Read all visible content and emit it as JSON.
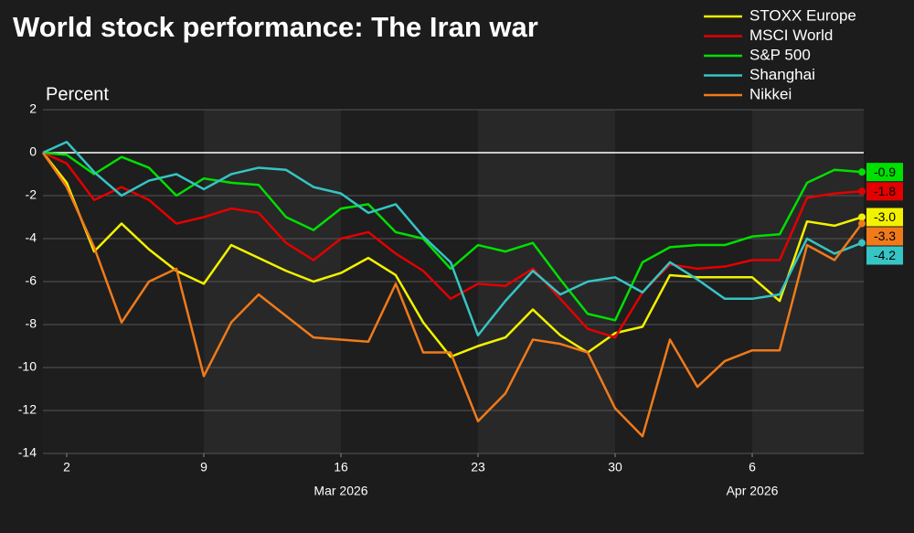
{
  "chart_data": {
    "type": "line",
    "title": "World stock performance: The Iran war",
    "y_label": "Percent",
    "categories": [
      null,
      "2",
      null,
      null,
      null,
      null,
      "9",
      null,
      null,
      null,
      null,
      "16",
      null,
      null,
      null,
      null,
      "23",
      null,
      null,
      null,
      null,
      "30",
      null,
      null,
      null,
      null,
      "6",
      null,
      null,
      null,
      null
    ],
    "month_labels": [
      {
        "label": "Mar 2026",
        "category": 11
      },
      {
        "label": "Apr 2026",
        "category": 26
      }
    ],
    "ylim": [
      -14,
      2
    ],
    "yticks": [
      -14,
      -12,
      -10,
      -8,
      -6,
      -4,
      -2,
      0,
      2
    ],
    "grid": true,
    "legend": "top-right",
    "series": [
      {
        "name": "STOXX Europe",
        "color": "#f2f200",
        "end_label": "-3.0",
        "values": [
          0,
          -1.4,
          -4.6,
          -3.3,
          -4.5,
          -5.5,
          -6.1,
          -4.3,
          -4.9,
          -5.5,
          -6.0,
          -5.6,
          -4.9,
          -5.7,
          -7.9,
          -9.5,
          -9.0,
          -8.6,
          -7.3,
          -8.5,
          -9.3,
          -8.4,
          -8.1,
          -5.7,
          -5.8,
          -5.8,
          -5.8,
          -6.9,
          -3.2,
          -3.4,
          -3.0
        ]
      },
      {
        "name": "MSCI World",
        "color": "#e30000",
        "end_label": "-1.8",
        "values": [
          0,
          -0.5,
          -2.2,
          -1.6,
          -2.2,
          -3.3,
          -3.0,
          -2.6,
          -2.8,
          -4.2,
          -5.0,
          -4.0,
          -3.7,
          -4.7,
          -5.5,
          -6.8,
          -6.1,
          -6.2,
          -5.4,
          -6.8,
          -8.2,
          -8.6,
          -6.5,
          -5.2,
          -5.4,
          -5.3,
          -5.0,
          -5.0,
          -2.1,
          -1.9,
          -1.8
        ]
      },
      {
        "name": "S&P 500",
        "color": "#00e000",
        "end_label": "-0.9",
        "values": [
          0,
          -0.1,
          -1.0,
          -0.2,
          -0.7,
          -2.0,
          -1.2,
          -1.4,
          -1.5,
          -3.0,
          -3.6,
          -2.6,
          -2.4,
          -3.7,
          -4.0,
          -5.4,
          -4.3,
          -4.6,
          -4.2,
          -5.9,
          -7.5,
          -7.8,
          -5.1,
          -4.4,
          -4.3,
          -4.3,
          -3.9,
          -3.8,
          -1.4,
          -0.8,
          -0.9
        ]
      },
      {
        "name": "Shanghai",
        "color": "#36c4c4",
        "end_label": "-4.2",
        "values": [
          0,
          0.5,
          -0.9,
          -2.0,
          -1.3,
          -1.0,
          -1.7,
          -1.0,
          -0.7,
          -0.8,
          -1.6,
          -1.9,
          -2.8,
          -2.4,
          -3.9,
          -5.1,
          -8.5,
          -6.9,
          -5.5,
          -6.6,
          -6.0,
          -5.8,
          -6.5,
          -5.1,
          -5.9,
          -6.8,
          -6.8,
          -6.6,
          -4.0,
          -4.7,
          -4.2
        ]
      },
      {
        "name": "Nikkei",
        "color": "#f07a1a",
        "end_label": "-3.3",
        "values": [
          0,
          -1.6,
          -4.4,
          -7.9,
          -6.0,
          -5.4,
          -10.4,
          -7.9,
          -6.6,
          -7.6,
          -8.6,
          -8.7,
          -8.8,
          -6.1,
          -9.3,
          -9.3,
          -12.5,
          -11.2,
          -8.7,
          -8.9,
          -9.3,
          -11.9,
          -13.2,
          -8.7,
          -10.9,
          -9.7,
          -9.2,
          -9.2,
          -4.3,
          -5.0,
          -3.3
        ]
      }
    ]
  }
}
